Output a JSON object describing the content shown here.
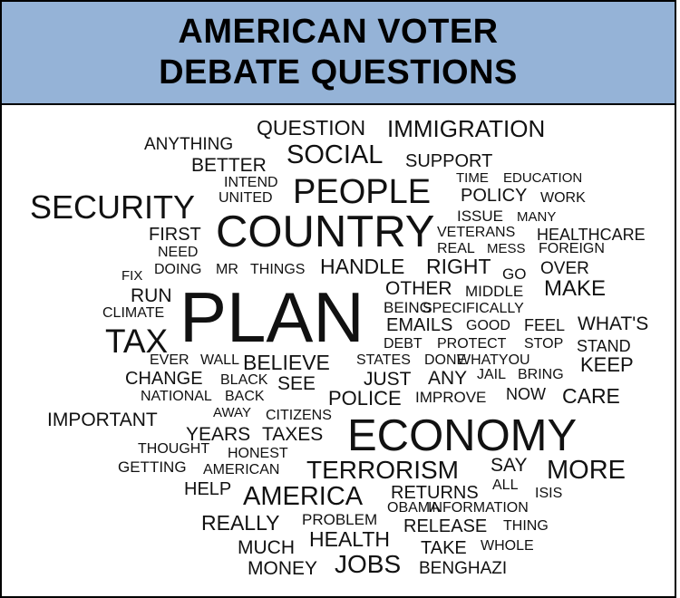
{
  "header": {
    "title_line_1": "AMERICAN VOTER",
    "title_line_2": "DEBATE QUESTIONS"
  },
  "colors": {
    "header_bg": "#95b3d7",
    "text": "#111111",
    "border": "#000000"
  },
  "words": [
    "QUESTION",
    "IMMIGRATION",
    "ANYTHING",
    "SOCIAL",
    "SUPPORT",
    "BETTER",
    "TIME",
    "EDUCATION",
    "INTEND",
    "PEOPLE",
    "POLICY",
    "WORK",
    "SECURITY",
    "UNITED",
    "ISSUE",
    "MANY",
    "FIRST",
    "COUNTRY",
    "VETERANS",
    "HEALTHCARE",
    "NEED",
    "REAL",
    "MESS",
    "FOREIGN",
    "FIX",
    "DOING",
    "MR",
    "THINGS",
    "HANDLE",
    "RIGHT",
    "GO",
    "OVER",
    "RUN",
    "OTHER",
    "MIDDLE",
    "MAKE",
    "CLIMATE",
    "BEING",
    "SPECIFICALLY",
    "PLAN",
    "EMAILS",
    "GOOD",
    "FEEL",
    "WHAT'S",
    "TAX",
    "DEBT",
    "PROTECT",
    "STOP",
    "STAND",
    "EVER",
    "WALL",
    "BELIEVE",
    "STATES",
    "DONE",
    "WHATYOU",
    "KEEP",
    "CHANGE",
    "BLACK",
    "SEE",
    "JUST",
    "ANY",
    "JAIL",
    "BRING",
    "NATIONAL",
    "BACK",
    "POLICE",
    "IMPROVE",
    "NOW",
    "CARE",
    "IMPORTANT",
    "AWAY",
    "CITIZENS",
    "YEARS",
    "TAXES",
    "ECONOMY",
    "THOUGHT",
    "HONEST",
    "GETTING",
    "AMERICAN",
    "TERRORISM",
    "SAY",
    "MORE",
    "ALL",
    "HELP",
    "AMERICA",
    "RETURNS",
    "ISIS",
    "OBAMA",
    "INFORMATION",
    "REALLY",
    "PROBLEM",
    "RELEASE",
    "THING",
    "HEALTH",
    "MUCH",
    "TAKE",
    "WHOLE",
    "MONEY",
    "JOBS",
    "BENGHAZI"
  ]
}
